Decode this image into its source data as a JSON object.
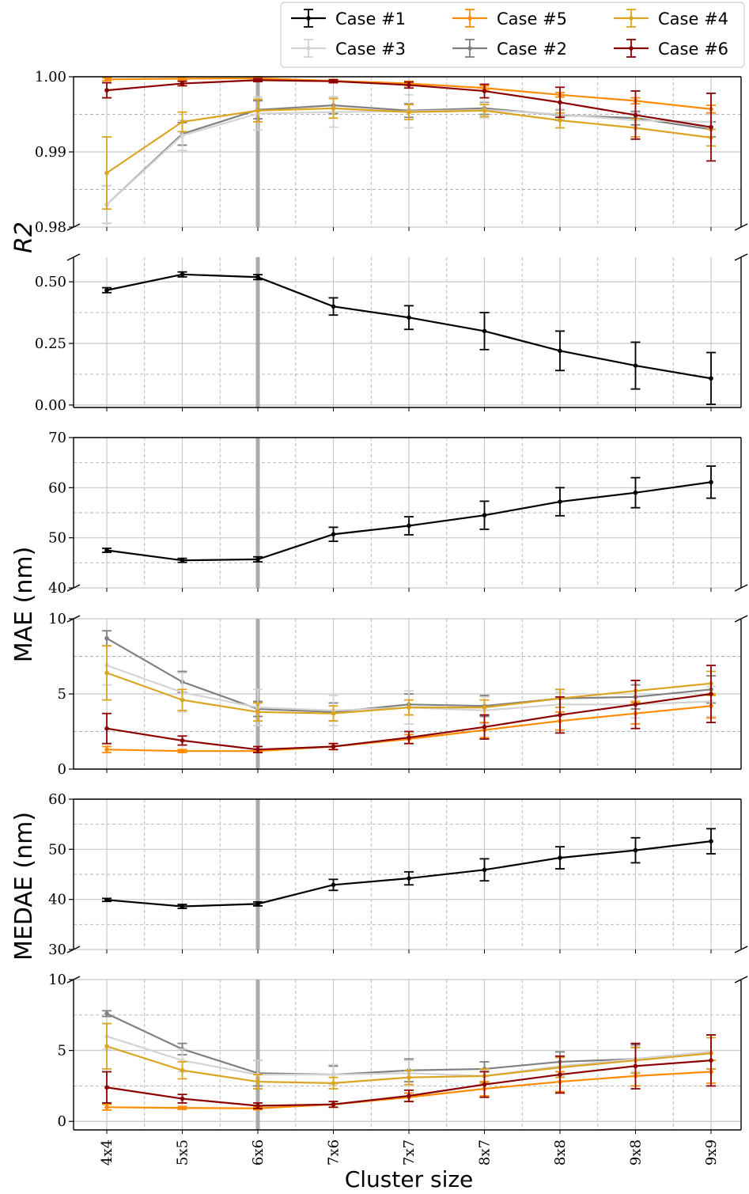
{
  "chart_data": {
    "type": "line",
    "xlabel": "Cluster size",
    "categories": [
      "4x4",
      "5x5",
      "6x6",
      "7x6",
      "7x7",
      "8x7",
      "8x8",
      "9x8",
      "9x9"
    ],
    "highlight_category": "6x6",
    "grid": true,
    "legend": {
      "placement": "top-right",
      "entries": [
        "Case #1",
        "Case #3",
        "Case #5",
        "Case #2",
        "Case #4",
        "Case #6"
      ]
    },
    "colors": {
      "Case #1": "#000000",
      "Case #2": "#808080",
      "Case #3": "#d3d3d3",
      "Case #4": "#daa520",
      "Case #5": "#ff8c00",
      "Case #6": "#8b0000"
    },
    "ylabels": [
      "R2",
      "MAE (nm)",
      "MEDAE (nm)"
    ],
    "panels": [
      {
        "id": "r2-upper",
        "ylim": [
          0.98,
          1.0
        ],
        "ticks": [
          0.98,
          0.99,
          1.0
        ],
        "tick_labels": [
          "0.98",
          "0.99",
          "1.00"
        ],
        "minor": [
          0.985,
          0.995
        ],
        "series": [
          {
            "name": "Case #2",
            "values": [
              0.983,
              0.9924,
              0.9956,
              0.9962,
              0.9955,
              0.9958,
              0.9949,
              0.9945,
              0.993
            ],
            "err": [
              0.0025,
              0.0015,
              0.0012,
              0.0011,
              0.0009,
              0.0008,
              0.0007,
              0.0009,
              0.001
            ]
          },
          {
            "name": "Case #3",
            "values": [
              0.983,
              0.9922,
              0.9951,
              0.9953,
              0.9954,
              0.9956,
              0.995,
              0.9942,
              0.994
            ],
            "err": [
              0.0025,
              0.002,
              0.0022,
              0.002,
              0.0022,
              0.0011,
              0.0007,
              0.001,
              0.001
            ]
          },
          {
            "name": "Case #4",
            "values": [
              0.9872,
              0.994,
              0.9955,
              0.9958,
              0.9953,
              0.9955,
              0.9942,
              0.9932,
              0.9919
            ],
            "err": [
              0.0048,
              0.0013,
              0.0015,
              0.0013,
              0.001,
              0.0008,
              0.001,
              0.0012,
              0.0011
            ]
          },
          {
            "name": "Case #5",
            "values": [
              0.99965,
              0.99975,
              0.9998,
              0.99945,
              0.9991,
              0.9985,
              0.9976,
              0.9968,
              0.9957
            ],
            "err": [
              0.0002,
              0.0002,
              0.0002,
              0.0002,
              0.0003,
              0.0003,
              0.0003,
              0.0004,
              0.0005
            ]
          },
          {
            "name": "Case #6",
            "values": [
              0.9982,
              0.9991,
              0.99955,
              0.9994,
              0.9989,
              0.9981,
              0.9966,
              0.9949,
              0.9933
            ],
            "err": [
              0.001,
              0.0003,
              0.0002,
              0.0002,
              0.0004,
              0.0009,
              0.002,
              0.0032,
              0.0045
            ]
          }
        ]
      },
      {
        "id": "r2-lower",
        "ylim": [
          -0.01,
          0.6
        ],
        "ticks": [
          0.0,
          0.25,
          0.5
        ],
        "tick_labels": [
          "0.00",
          "0.25",
          "0.50"
        ],
        "minor": [
          0.125,
          0.375
        ],
        "series": [
          {
            "name": "Case #1",
            "values": [
              0.466,
              0.53,
              0.519,
              0.4,
              0.355,
              0.3,
              0.22,
              0.16,
              0.108
            ],
            "err": [
              0.01,
              0.01,
              0.01,
              0.035,
              0.048,
              0.075,
              0.08,
              0.095,
              0.105
            ]
          }
        ]
      },
      {
        "id": "mae-upper",
        "ylim": [
          40,
          70
        ],
        "ticks": [
          40,
          50,
          60,
          70
        ],
        "tick_labels": [
          "40",
          "50",
          "60",
          "70"
        ],
        "minor": [
          45,
          55,
          65
        ],
        "series": [
          {
            "name": "Case #1",
            "values": [
              47.5,
              45.5,
              45.7,
              50.7,
              52.4,
              54.5,
              57.2,
              59.0,
              61.1
            ],
            "err": [
              0.4,
              0.4,
              0.5,
              1.4,
              1.8,
              2.8,
              2.8,
              3.0,
              3.2
            ]
          }
        ]
      },
      {
        "id": "mae-lower",
        "ylim": [
          0,
          10
        ],
        "ticks": [
          0,
          5,
          10
        ],
        "tick_labels": [
          "0",
          "5",
          "10"
        ],
        "minor": [
          2.5,
          7.5
        ],
        "series": [
          {
            "name": "Case #2",
            "values": [
              8.7,
              5.8,
              4.0,
              3.8,
              4.3,
              4.2,
              4.7,
              4.8,
              5.3
            ],
            "err": [
              0.5,
              0.7,
              0.5,
              0.6,
              0.7,
              0.7,
              0.6,
              0.8,
              0.9
            ]
          },
          {
            "name": "Case #3",
            "values": [
              6.9,
              5.1,
              4.1,
              3.9,
              4.1,
              3.9,
              4.3,
              4.3,
              4.5
            ],
            "err": [
              1.3,
              1.3,
              1.2,
              1.0,
              1.1,
              0.9,
              0.8,
              0.9,
              1.0
            ]
          },
          {
            "name": "Case #4",
            "values": [
              6.4,
              4.6,
              3.8,
              3.7,
              4.1,
              4.1,
              4.7,
              5.2,
              5.7
            ],
            "err": [
              1.8,
              0.7,
              0.6,
              0.5,
              0.5,
              0.5,
              0.6,
              0.7,
              0.8
            ]
          },
          {
            "name": "Case #5",
            "values": [
              1.3,
              1.2,
              1.2,
              1.5,
              2.0,
              2.6,
              3.2,
              3.7,
              4.2
            ],
            "err": [
              0.2,
              0.1,
              0.1,
              0.2,
              0.3,
              0.5,
              0.6,
              0.7,
              0.8
            ]
          },
          {
            "name": "Case #6",
            "values": [
              2.7,
              1.9,
              1.3,
              1.5,
              2.1,
              2.8,
              3.6,
              4.3,
              5.0
            ],
            "err": [
              1.0,
              0.3,
              0.2,
              0.2,
              0.4,
              0.8,
              1.2,
              1.6,
              1.9
            ]
          }
        ]
      },
      {
        "id": "medae-upper",
        "ylim": [
          30,
          60
        ],
        "ticks": [
          30,
          40,
          50,
          60
        ],
        "tick_labels": [
          "30",
          "40",
          "50",
          "60"
        ],
        "minor": [
          35,
          45,
          55
        ],
        "series": [
          {
            "name": "Case #1",
            "values": [
              39.9,
              38.6,
              39.1,
              42.9,
              44.2,
              45.9,
              48.3,
              49.8,
              51.6
            ],
            "err": [
              0.3,
              0.4,
              0.4,
              1.1,
              1.3,
              2.2,
              2.2,
              2.5,
              2.5
            ]
          }
        ]
      },
      {
        "id": "medae-lower",
        "ylim": [
          -0.6,
          10
        ],
        "ticks": [
          0,
          5,
          10
        ],
        "tick_labels": [
          "0",
          "5",
          "10"
        ],
        "minor": [
          2.5,
          7.5
        ],
        "series": [
          {
            "name": "Case #2",
            "values": [
              7.6,
              5.1,
              3.4,
              3.3,
              3.6,
              3.7,
              4.2,
              4.4,
              4.9
            ],
            "err": [
              0.2,
              0.4,
              0.9,
              0.6,
              0.8,
              0.5,
              0.7,
              1.0,
              1.2
            ]
          },
          {
            "name": "Case #3",
            "values": [
              6.0,
              4.3,
              3.3,
              3.3,
              3.4,
              3.2,
              3.9,
              4.4,
              4.9
            ],
            "err": [
              0.9,
              0.8,
              1.0,
              0.7,
              0.9,
              0.4,
              0.7,
              0.9,
              1.2
            ]
          },
          {
            "name": "Case #4",
            "values": [
              5.3,
              3.6,
              2.8,
              2.7,
              3.1,
              3.2,
              3.8,
              4.3,
              4.8
            ],
            "err": [
              1.6,
              0.6,
              0.5,
              0.4,
              0.5,
              0.5,
              0.7,
              0.9,
              1.1
            ]
          },
          {
            "name": "Case #5",
            "values": [
              1.0,
              0.95,
              0.92,
              1.2,
              1.7,
              2.3,
              2.8,
              3.2,
              3.5
            ],
            "err": [
              0.2,
              0.1,
              0.1,
              0.2,
              0.3,
              0.5,
              0.7,
              0.7,
              0.8
            ]
          },
          {
            "name": "Case #6",
            "values": [
              2.4,
              1.6,
              1.1,
              1.2,
              1.8,
              2.6,
              3.3,
              3.9,
              4.3
            ],
            "err": [
              1.1,
              0.3,
              0.2,
              0.2,
              0.4,
              0.9,
              1.3,
              1.6,
              1.8
            ]
          }
        ]
      }
    ]
  }
}
